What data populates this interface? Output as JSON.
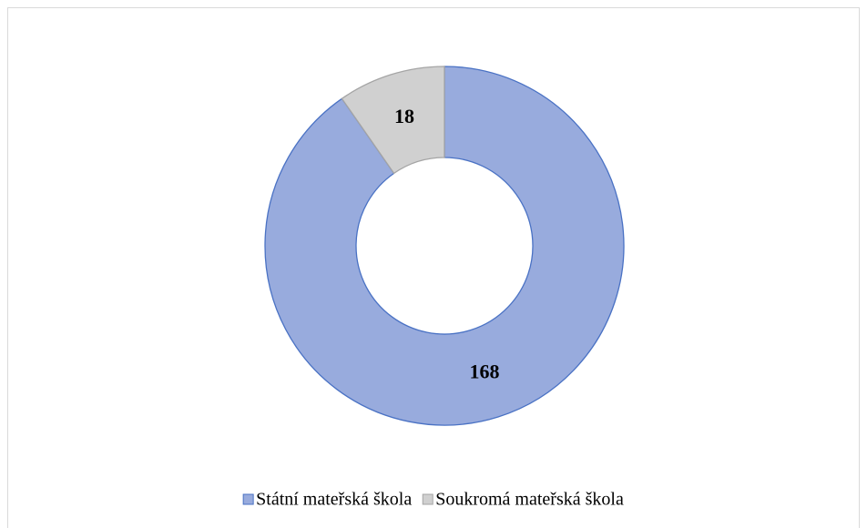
{
  "chart_data": {
    "type": "donut",
    "categories": [
      "Státní mateřská škola",
      "Soukromá mateřská škola"
    ],
    "values": [
      168,
      18
    ],
    "colors": [
      "#98abdd",
      "#d0d0d0"
    ],
    "edge_colors": [
      "#4a72c4",
      "#a5a5a5"
    ],
    "legend": "bottom"
  }
}
